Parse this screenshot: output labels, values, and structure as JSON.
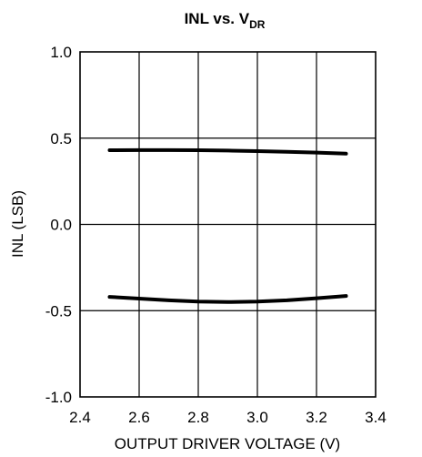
{
  "chart_data": {
    "type": "line",
    "title": "INL vs. V",
    "title_subscript": "DR",
    "xlabel": "OUTPUT DRIVER VOLTAGE (V)",
    "ylabel": "INL (LSB)",
    "xlim": [
      2.4,
      3.4
    ],
    "ylim": [
      -1.0,
      1.0
    ],
    "x_ticks": [
      "2.4",
      "2.6",
      "2.8",
      "3.0",
      "3.2",
      "3.4"
    ],
    "y_ticks": [
      "1.0",
      "0.5",
      "0.0",
      "-0.5",
      "-1.0"
    ],
    "grid": true,
    "series": [
      {
        "x": [
          2.5,
          2.6,
          2.7,
          2.8,
          2.9,
          3.0,
          3.1,
          3.2,
          3.3
        ],
        "y": [
          0.43,
          0.431,
          0.431,
          0.43,
          0.428,
          0.425,
          0.421,
          0.416,
          0.41
        ]
      },
      {
        "x": [
          2.5,
          2.6,
          2.7,
          2.8,
          2.9,
          3.0,
          3.1,
          3.2,
          3.3
        ],
        "y": [
          -0.42,
          -0.43,
          -0.44,
          -0.447,
          -0.45,
          -0.447,
          -0.44,
          -0.428,
          -0.415
        ]
      }
    ]
  }
}
